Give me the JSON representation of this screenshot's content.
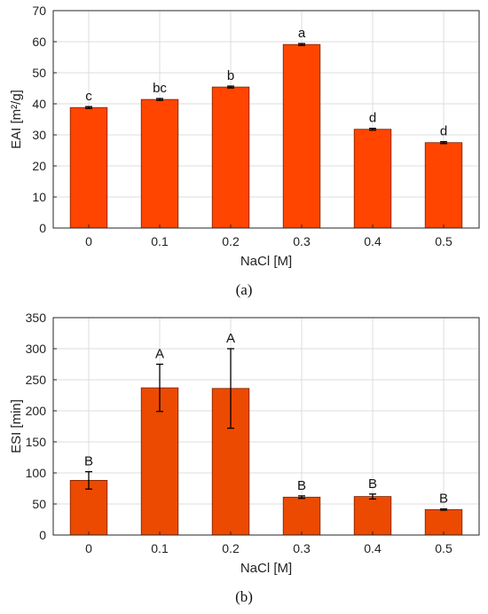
{
  "chart_data": [
    {
      "type": "bar",
      "panel_label": "(a)",
      "categories": [
        "0",
        "0.1",
        "0.2",
        "0.3",
        "0.4",
        "0.5"
      ],
      "values": [
        38.8,
        41.4,
        45.4,
        59.1,
        31.8,
        27.5
      ],
      "errors": [
        0.3,
        0.3,
        0.3,
        0.3,
        0.3,
        0.3
      ],
      "significance": [
        "c",
        "bc",
        "b",
        "a",
        "d",
        "d"
      ],
      "xlabel": "NaCl [M]",
      "ylabel": "EAI [m²/g]",
      "ylim": [
        0,
        70
      ],
      "yticks": [
        0,
        10,
        20,
        30,
        40,
        50,
        60,
        70
      ],
      "grid": true,
      "bar_color": "#ff4500"
    },
    {
      "type": "bar",
      "panel_label": "(b)",
      "categories": [
        "0",
        "0.1",
        "0.2",
        "0.3",
        "0.4",
        "0.5"
      ],
      "values": [
        88,
        237,
        236,
        61,
        62,
        41
      ],
      "errors": [
        14,
        38,
        64,
        2,
        4,
        1
      ],
      "significance": [
        "B",
        "A",
        "A",
        "B",
        "B",
        "B"
      ],
      "xlabel": "NaCl [M]",
      "ylabel": "ESI [min]",
      "ylim": [
        0,
        350
      ],
      "yticks": [
        0,
        50,
        100,
        150,
        200,
        250,
        300,
        350
      ],
      "grid": true,
      "bar_color": "#ec4a00"
    }
  ]
}
